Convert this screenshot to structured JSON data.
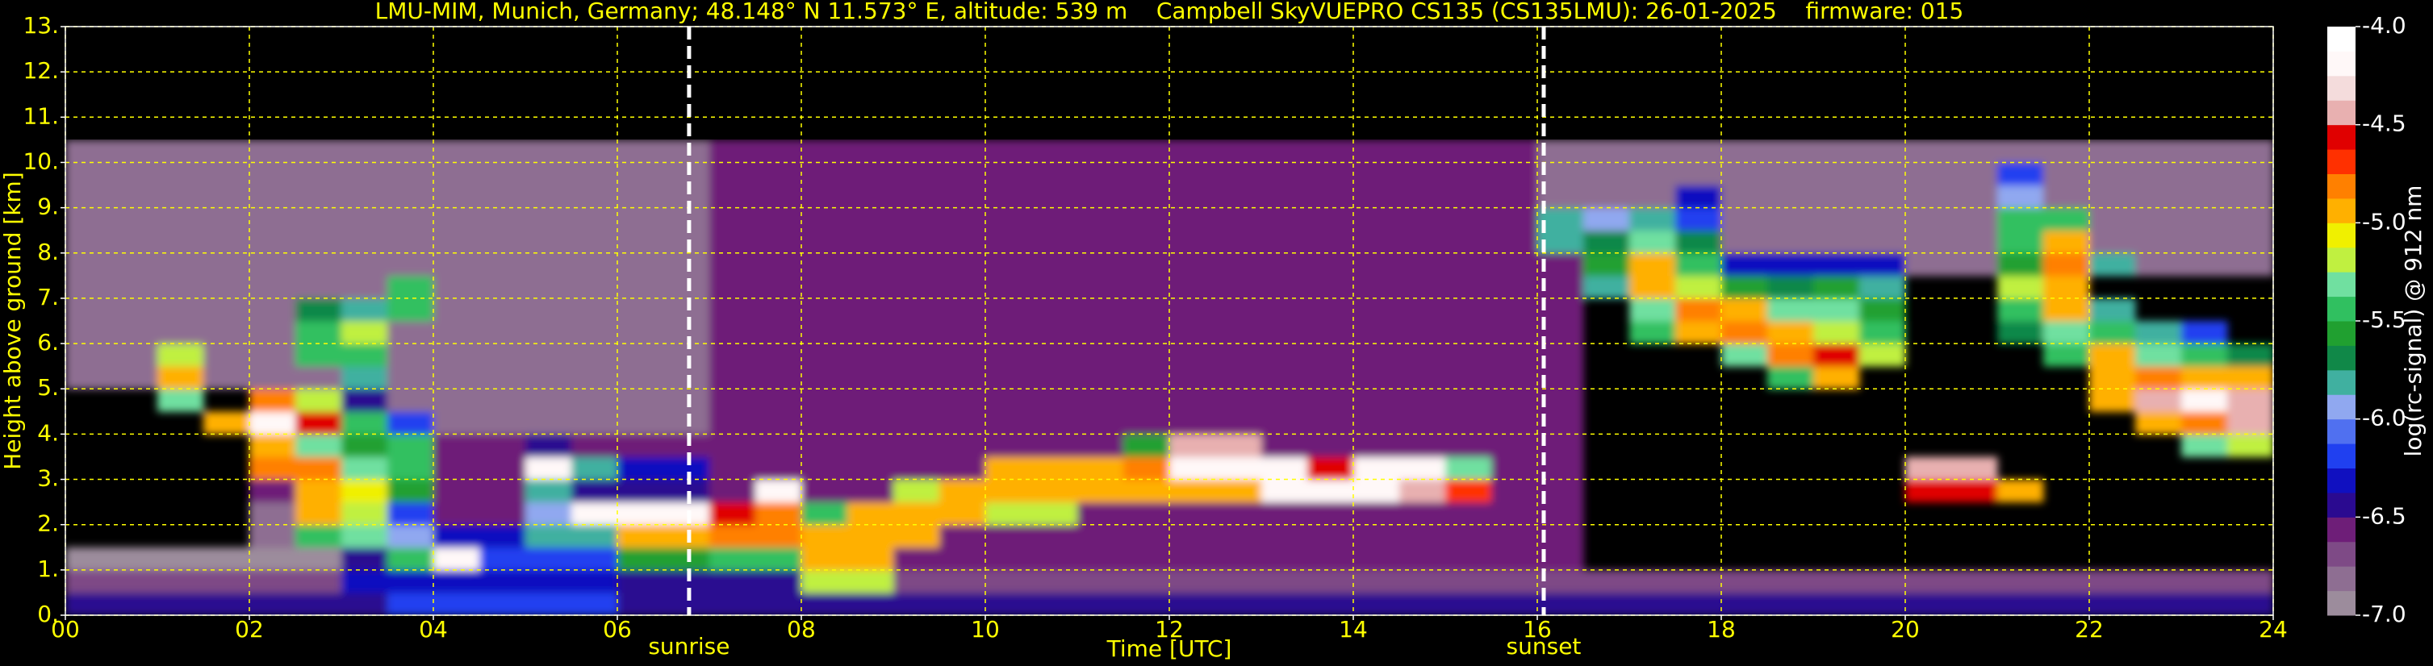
{
  "chart_data": {
    "type": "heatmap",
    "title": "LMU-MIM, Munich, Germany; 48.148° N 11.573° E, altitude: 539 m    Campbell SkyVUEPRO CS135 (CS135LMU): 26-01-2025    firmware: 015",
    "x_label": "Time [UTC]",
    "y_label": "Height above ground [km]",
    "colorbar_label": "log(rc-signal) @ 912 nm",
    "xlim": [
      0,
      24
    ],
    "ylim": [
      0,
      13
    ],
    "zlim": [
      -7,
      -4
    ],
    "xticks": [
      {
        "value": 0,
        "label": "00"
      },
      {
        "value": 2,
        "label": "02"
      },
      {
        "value": 4,
        "label": "04"
      },
      {
        "value": 6,
        "label": "06"
      },
      {
        "value": 8,
        "label": "08"
      },
      10,
      12,
      14,
      16,
      18,
      20,
      22,
      24
    ],
    "yticks": [
      {
        "value": 0,
        "label": "0."
      },
      {
        "value": 1,
        "label": "1."
      },
      {
        "value": 2,
        "label": "2."
      },
      {
        "value": 3,
        "label": "3."
      },
      {
        "value": 4,
        "label": "4."
      },
      {
        "value": 5,
        "label": "5."
      },
      {
        "value": 6,
        "label": "6."
      },
      {
        "value": 7,
        "label": "7."
      },
      {
        "value": 8,
        "label": "8."
      },
      {
        "value": 9,
        "label": "9."
      },
      {
        "value": 10,
        "label": "10."
      },
      {
        "value": 11,
        "label": "11."
      },
      {
        "value": 12,
        "label": "12."
      },
      {
        "value": 13,
        "label": "13."
      }
    ],
    "zticks": [
      {
        "value": -4,
        "label": "-4.0"
      },
      -4.5,
      {
        "value": -5,
        "label": "-5.0"
      },
      -5.5,
      {
        "value": -6,
        "label": "-6.0"
      },
      -6.5,
      {
        "value": -7,
        "label": "-7.0"
      }
    ],
    "grid": true,
    "grid_color": "#ffff00",
    "colors": [
      "#9c8c9c",
      "#8e6e92",
      "#7e4a86",
      "#6e1e78",
      "#2a0a90",
      "#1010c0",
      "#2040f0",
      "#5070f0",
      "#90a8f0",
      "#40b0a0",
      "#108848",
      "#20a030",
      "#30c060",
      "#70e0a0",
      "#c0f040",
      "#f0f000",
      "#ffb000",
      "#ff8000",
      "#ff3000",
      "#e00000",
      "#e8b0b0",
      "#f4dcdc",
      "#fff8f8",
      "#ffffff"
    ],
    "annotations": [
      {
        "x": 6.78,
        "label": "sunrise"
      },
      {
        "x": 16.07,
        "label": "sunset"
      }
    ],
    "x": [
      0,
      0.5,
      1,
      1.5,
      2,
      2.5,
      3,
      3.5,
      4,
      4.5,
      5,
      5.5,
      6,
      6.5,
      7,
      7.5,
      8,
      8.5,
      9,
      9.5,
      10,
      10.5,
      11,
      11.5,
      12,
      12.5,
      13,
      13.5,
      14,
      14.5,
      15,
      15.5,
      16,
      16.5,
      17,
      17.5,
      18,
      18.5,
      19,
      19.5,
      20,
      20.5,
      21,
      21.5,
      22,
      22.5,
      23,
      23.5,
      24
    ],
    "y": [
      0,
      0.5,
      1,
      1.5,
      2,
      2.5,
      3,
      3.5,
      4,
      4.5,
      5,
      5.5,
      6,
      6.5,
      7,
      7.5,
      8,
      8.5,
      9,
      9.5,
      10,
      10.5
    ],
    "z": [
      [
        -6.45,
        -6.45,
        -6.45,
        -6.45,
        -6.45,
        -6.45,
        -6.45,
        -6.25,
        -6.25,
        -6.25,
        -6.25,
        -6.25,
        -6.4,
        -6.4,
        -6.4,
        -6.4,
        -6.5,
        -6.5,
        -6.5,
        -6.5,
        -6.5,
        -6.5,
        -6.5,
        -6.5,
        -6.5,
        -6.5,
        -6.5,
        -6.5,
        -6.5,
        -6.5,
        -6.5,
        -6.5,
        -6.5,
        -6.45,
        -6.45,
        -6.45,
        -6.45,
        -6.45,
        -6.45,
        -6.45,
        -6.45,
        -6.45,
        -6.45,
        -6.45,
        -6.45,
        -6.45,
        -6.45,
        -6.45
      ],
      [
        -6.75,
        -6.75,
        -6.75,
        -6.75,
        -6.75,
        -6.75,
        -6.3,
        -6.3,
        -6.3,
        -6.3,
        -6.3,
        -6.3,
        -6.5,
        -6.5,
        -6.5,
        -6.5,
        -5.2,
        -5.2,
        -6.75,
        -6.75,
        -6.75,
        -6.75,
        -6.75,
        -6.75,
        -6.75,
        -6.75,
        -6.75,
        -6.75,
        -6.75,
        -6.75,
        -6.75,
        -6.75,
        -6.75,
        -6.7,
        -6.7,
        -6.7,
        -6.7,
        -6.7,
        -6.7,
        -6.7,
        -6.7,
        -6.7,
        -6.7,
        -6.7,
        -6.7,
        -6.7,
        -6.7,
        -6.7
      ],
      [
        -6.9,
        -6.9,
        -6.9,
        -6.9,
        -6.9,
        -6.9,
        -6.5,
        -5.5,
        -4.2,
        -6.2,
        -6.2,
        -6.2,
        -5.6,
        -5.6,
        -5.4,
        -5.4,
        -4.9,
        -4.9,
        -6.55,
        -6.55,
        -6.55,
        -6.55,
        -6.55,
        -6.55,
        -6.55,
        -6.55,
        -6.55,
        -6.55,
        -6.55,
        -6.55,
        -6.55,
        -6.55,
        -6.55,
        null,
        null,
        null,
        null,
        null,
        null,
        null,
        null,
        null,
        null,
        null,
        null,
        null,
        null,
        null
      ],
      [
        null,
        null,
        null,
        null,
        -6.8,
        -5.5,
        -5.3,
        -6.0,
        -6.3,
        -6.3,
        -5.8,
        -5.8,
        -5.0,
        -5.0,
        -4.8,
        -4.8,
        -4.9,
        -4.9,
        -5.0,
        -6.55,
        -6.55,
        -6.55,
        -6.55,
        -6.55,
        -6.55,
        -6.55,
        -6.55,
        -6.55,
        -6.55,
        -6.55,
        -6.55,
        -6.55,
        -6.55,
        null,
        null,
        null,
        null,
        null,
        null,
        null,
        null,
        null,
        null,
        null,
        null,
        null,
        null,
        null
      ],
      [
        null,
        null,
        null,
        null,
        -6.8,
        -5.0,
        -5.2,
        -6.2,
        -6.55,
        -6.55,
        -5.9,
        -4.2,
        -4.2,
        -4.2,
        -4.6,
        -4.8,
        -5.5,
        -5.0,
        -4.9,
        -4.9,
        -5.2,
        -5.2,
        -6.55,
        -6.55,
        -6.55,
        -6.55,
        -6.55,
        -6.55,
        -6.55,
        -6.55,
        -6.55,
        -6.55,
        -6.55,
        null,
        null,
        null,
        null,
        null,
        null,
        null,
        null,
        null,
        null,
        null,
        null,
        null,
        null,
        null
      ],
      [
        null,
        null,
        null,
        null,
        -6.6,
        -5.0,
        -5.1,
        -5.6,
        -6.55,
        -6.55,
        -5.8,
        -6.4,
        -6.4,
        -6.4,
        -6.55,
        -4.2,
        -6.55,
        -6.55,
        -5.2,
        -4.9,
        -4.9,
        -5.0,
        -5.0,
        -5.0,
        -4.9,
        -4.9,
        -4.2,
        -4.2,
        -4.2,
        -4.5,
        -4.7,
        -6.55,
        -6.55,
        null,
        null,
        null,
        null,
        null,
        null,
        null,
        -4.6,
        -4.6,
        -5.0,
        null,
        null,
        null,
        null,
        null
      ],
      [
        null,
        null,
        null,
        null,
        -4.8,
        -4.8,
        -5.3,
        -5.5,
        -6.55,
        -6.55,
        -4.2,
        -5.8,
        -6.3,
        -6.3,
        -6.55,
        -6.55,
        -6.55,
        -6.55,
        -6.55,
        -6.55,
        -5.0,
        -5.0,
        -5.0,
        -4.8,
        -4.2,
        -4.2,
        -4.2,
        -4.6,
        -4.2,
        -4.2,
        -5.3,
        -6.55,
        -6.55,
        null,
        null,
        null,
        null,
        null,
        null,
        null,
        -4.5,
        -4.5,
        null,
        null,
        null,
        null,
        null,
        null
      ],
      [
        null,
        null,
        null,
        null,
        -5.0,
        -5.3,
        -5.6,
        -5.5,
        -6.55,
        -6.55,
        -6.4,
        -6.55,
        -6.55,
        -6.55,
        -6.55,
        -6.55,
        -6.55,
        -6.55,
        -6.55,
        -6.55,
        -6.55,
        -6.55,
        -6.55,
        -5.6,
        -4.5,
        -4.5,
        -6.55,
        -6.55,
        -6.55,
        -6.55,
        -6.55,
        -6.55,
        -6.55,
        null,
        null,
        null,
        null,
        null,
        null,
        null,
        null,
        null,
        null,
        null,
        null,
        null,
        -5.3,
        -5.2
      ],
      [
        null,
        null,
        null,
        -5.0,
        -4.2,
        -4.6,
        -5.4,
        -6.2,
        -6.8,
        -6.8,
        -6.8,
        -6.8,
        -6.8,
        -6.8,
        -6.55,
        -6.55,
        -6.55,
        -6.55,
        -6.55,
        -6.55,
        -6.55,
        -6.55,
        -6.55,
        -6.55,
        -6.55,
        -6.55,
        -6.55,
        -6.55,
        -6.55,
        -6.55,
        -6.55,
        -6.55,
        -6.55,
        null,
        null,
        null,
        null,
        null,
        null,
        null,
        null,
        null,
        null,
        null,
        null,
        -5.0,
        -4.8,
        -4.5
      ],
      [
        null,
        null,
        -5.3,
        null,
        -4.8,
        -5.2,
        -6.5,
        -6.8,
        -6.8,
        -6.8,
        -6.8,
        -6.8,
        -6.8,
        -6.8,
        -6.55,
        -6.55,
        -6.55,
        -6.55,
        -6.55,
        -6.55,
        -6.55,
        -6.55,
        -6.55,
        -6.55,
        -6.55,
        -6.55,
        -6.55,
        -6.55,
        -6.55,
        -6.55,
        -6.55,
        -6.55,
        -6.55,
        null,
        null,
        null,
        null,
        null,
        null,
        null,
        null,
        null,
        null,
        null,
        -5.0,
        -4.5,
        -4.2,
        -4.4
      ],
      [
        -6.8,
        -6.8,
        -5.0,
        -6.8,
        -6.8,
        -6.8,
        -5.8,
        -6.8,
        -6.8,
        -6.8,
        -6.8,
        -6.8,
        -6.8,
        -6.8,
        -6.55,
        -6.55,
        -6.55,
        -6.55,
        -6.55,
        -6.55,
        -6.55,
        -6.55,
        -6.55,
        -6.55,
        -6.55,
        -6.55,
        -6.55,
        -6.55,
        -6.55,
        -6.55,
        -6.55,
        -6.55,
        -6.55,
        null,
        null,
        null,
        null,
        -5.5,
        -5.0,
        null,
        null,
        null,
        null,
        null,
        -4.9,
        -4.8,
        -4.9,
        -5.0
      ],
      [
        -6.8,
        -6.8,
        -5.2,
        -6.8,
        -6.8,
        -5.5,
        -5.4,
        -6.8,
        -6.8,
        -6.8,
        -6.8,
        -6.8,
        -6.8,
        -6.8,
        -6.55,
        -6.55,
        -6.55,
        -6.55,
        -6.55,
        -6.55,
        -6.55,
        -6.55,
        -6.55,
        -6.55,
        -6.55,
        -6.55,
        -6.55,
        -6.55,
        -6.55,
        -6.55,
        -6.55,
        -6.55,
        -6.55,
        null,
        null,
        null,
        -5.3,
        -4.8,
        -4.6,
        -5.2,
        null,
        null,
        null,
        -5.5,
        -5.0,
        -5.3,
        -5.5,
        -5.7
      ],
      [
        -6.8,
        -6.8,
        -6.8,
        -6.8,
        -6.8,
        -5.4,
        -5.2,
        -6.8,
        -6.8,
        -6.8,
        -6.8,
        -6.8,
        -6.8,
        -6.8,
        -6.55,
        -6.55,
        -6.55,
        -6.55,
        -6.55,
        -6.55,
        -6.55,
        -6.55,
        -6.55,
        -6.55,
        -6.55,
        -6.55,
        -6.55,
        -6.55,
        -6.55,
        -6.55,
        -6.55,
        -6.55,
        -6.55,
        null,
        -5.4,
        -5.0,
        -4.8,
        -4.9,
        -5.2,
        -5.5,
        null,
        null,
        -5.7,
        -5.3,
        -5.5,
        -5.8,
        -6.2,
        null
      ],
      [
        -6.8,
        -6.8,
        -6.8,
        -6.8,
        -6.8,
        -5.7,
        -5.8,
        -5.5,
        -6.8,
        -6.8,
        -6.8,
        -6.8,
        -6.8,
        -6.8,
        -6.55,
        -6.55,
        -6.55,
        -6.55,
        -6.55,
        -6.55,
        -6.55,
        -6.55,
        -6.55,
        -6.55,
        -6.55,
        -6.55,
        -6.55,
        -6.55,
        -6.55,
        -6.55,
        -6.55,
        -6.55,
        -6.55,
        null,
        -5.3,
        -4.8,
        -5.0,
        -5.3,
        -5.3,
        -5.6,
        null,
        null,
        -5.5,
        -5.0,
        -5.8,
        null,
        null,
        null
      ],
      [
        -6.8,
        -6.8,
        -6.8,
        -6.8,
        -6.8,
        -6.8,
        -6.8,
        -5.5,
        -6.8,
        -6.8,
        -6.8,
        -6.8,
        -6.8,
        -6.8,
        -6.55,
        -6.55,
        -6.55,
        -6.55,
        -6.55,
        -6.55,
        -6.55,
        -6.55,
        -6.55,
        -6.55,
        -6.55,
        -6.55,
        -6.55,
        -6.55,
        -6.55,
        -6.55,
        -6.55,
        -6.55,
        -6.55,
        -5.8,
        -5.0,
        -5.2,
        -5.6,
        -5.7,
        -5.6,
        -5.8,
        null,
        null,
        -5.2,
        -4.9,
        null,
        null,
        null,
        null
      ],
      [
        -6.8,
        -6.8,
        -6.8,
        -6.8,
        -6.8,
        -6.8,
        -6.8,
        -6.8,
        -6.8,
        -6.8,
        -6.8,
        -6.8,
        -6.8,
        -6.8,
        -6.55,
        -6.55,
        -6.55,
        -6.55,
        -6.55,
        -6.55,
        -6.55,
        -6.55,
        -6.55,
        -6.55,
        -6.55,
        -6.55,
        -6.55,
        -6.55,
        -6.55,
        -6.55,
        -6.55,
        -6.55,
        -6.55,
        -5.6,
        -4.9,
        -5.5,
        -6.3,
        -6.3,
        -6.3,
        -6.3,
        -6.8,
        -6.8,
        -5.6,
        -4.8,
        -5.8,
        -6.8,
        -6.8,
        -6.8
      ],
      [
        -6.8,
        -6.8,
        -6.8,
        -6.8,
        -6.8,
        -6.8,
        -6.8,
        -6.8,
        -6.8,
        -6.8,
        -6.8,
        -6.8,
        -6.8,
        -6.8,
        -6.55,
        -6.55,
        -6.55,
        -6.55,
        -6.55,
        -6.55,
        -6.55,
        -6.55,
        -6.55,
        -6.55,
        -6.55,
        -6.55,
        -6.55,
        -6.55,
        -6.55,
        -6.55,
        -6.55,
        -6.55,
        -5.8,
        -5.7,
        -5.3,
        -5.7,
        -6.8,
        -6.8,
        -6.8,
        -6.8,
        -6.8,
        -6.8,
        -5.5,
        -5.0,
        -6.8,
        -6.8,
        -6.8,
        -6.8
      ],
      [
        -6.8,
        -6.8,
        -6.8,
        -6.8,
        -6.8,
        -6.8,
        -6.8,
        -6.8,
        -6.8,
        -6.8,
        -6.8,
        -6.8,
        -6.8,
        -6.8,
        -6.55,
        -6.55,
        -6.55,
        -6.55,
        -6.55,
        -6.55,
        -6.55,
        -6.55,
        -6.55,
        -6.55,
        -6.55,
        -6.55,
        -6.55,
        -6.55,
        -6.55,
        -6.55,
        -6.55,
        -6.55,
        -5.8,
        -6.0,
        -5.8,
        -6.2,
        -6.8,
        -6.8,
        -6.8,
        -6.8,
        -6.8,
        -6.8,
        -5.5,
        -5.4,
        -6.8,
        -6.8,
        -6.8,
        -6.8
      ],
      [
        -6.8,
        -6.8,
        -6.8,
        -6.8,
        -6.8,
        -6.8,
        -6.8,
        -6.8,
        -6.8,
        -6.8,
        -6.8,
        -6.8,
        -6.8,
        -6.8,
        -6.55,
        -6.55,
        -6.55,
        -6.55,
        -6.55,
        -6.55,
        -6.55,
        -6.55,
        -6.55,
        -6.55,
        -6.55,
        -6.55,
        -6.55,
        -6.55,
        -6.55,
        -6.55,
        -6.55,
        -6.55,
        -6.8,
        -6.8,
        -6.8,
        -6.3,
        -6.8,
        -6.8,
        -6.8,
        -6.8,
        -6.8,
        -6.8,
        -6.0,
        -6.8,
        -6.8,
        -6.8,
        -6.8,
        -6.8
      ],
      [
        -6.8,
        -6.8,
        -6.8,
        -6.8,
        -6.8,
        -6.8,
        -6.8,
        -6.8,
        -6.8,
        -6.8,
        -6.8,
        -6.8,
        -6.8,
        -6.8,
        -6.55,
        -6.55,
        -6.55,
        -6.55,
        -6.55,
        -6.55,
        -6.55,
        -6.55,
        -6.55,
        -6.55,
        -6.55,
        -6.55,
        -6.55,
        -6.55,
        -6.55,
        -6.55,
        -6.55,
        -6.55,
        -6.8,
        -6.8,
        -6.8,
        -6.8,
        -6.8,
        -6.8,
        -6.8,
        -6.8,
        -6.8,
        -6.8,
        -6.2,
        -6.8,
        -6.8,
        -6.8,
        -6.8,
        -6.8
      ],
      [
        -6.85,
        -6.85,
        -6.85,
        -6.85,
        -6.85,
        -6.85,
        -6.85,
        -6.85,
        -6.85,
        -6.85,
        -6.85,
        -6.85,
        -6.85,
        -6.85,
        -6.6,
        -6.6,
        -6.6,
        -6.6,
        -6.6,
        -6.6,
        -6.6,
        -6.6,
        -6.6,
        -6.6,
        -6.6,
        -6.6,
        -6.6,
        -6.6,
        -6.6,
        -6.6,
        -6.6,
        -6.6,
        -6.85,
        -6.85,
        -6.85,
        -6.85,
        -6.85,
        -6.85,
        -6.85,
        -6.85,
        -6.85,
        -6.85,
        -6.85,
        -6.85,
        -6.85,
        -6.85,
        -6.85,
        -6.85
      ]
    ]
  }
}
